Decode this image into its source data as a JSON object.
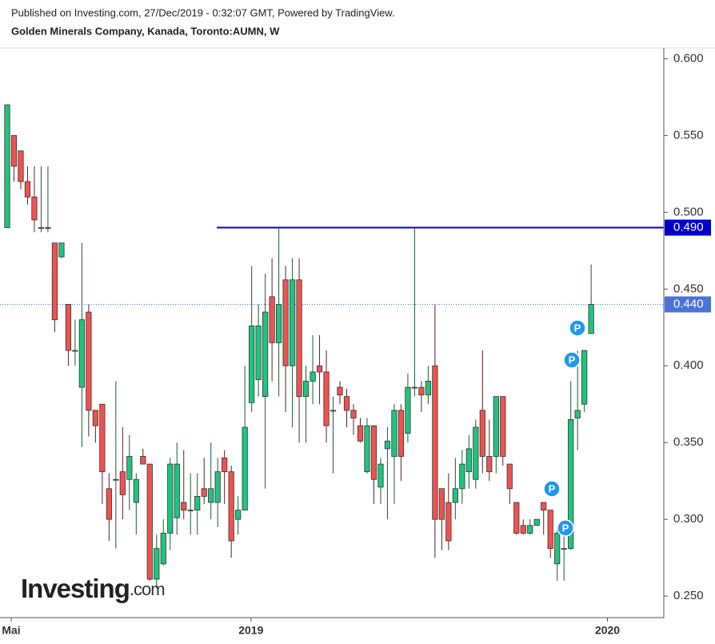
{
  "header": {
    "published": "Published on Investing.com, 27/Dec/2019 - 0:32:07 GMT, Powered by TradingView.",
    "symbol": "Golden Minerals Company, Kanada, Toronto:AUMN, W"
  },
  "logo": {
    "name": "Investing",
    "suffix": ".com"
  },
  "chart_data": {
    "type": "candlestick",
    "categories": [
      null,
      null,
      null,
      null,
      null,
      null,
      null,
      null,
      null,
      null,
      null,
      null,
      null,
      null,
      null,
      null,
      null,
      null,
      null,
      null,
      null,
      null,
      null,
      null,
      null,
      null,
      null,
      null,
      null,
      null,
      null,
      null,
      null,
      null,
      null,
      null,
      null,
      null,
      null,
      null,
      null,
      null,
      null,
      null,
      null,
      null,
      null,
      null,
      null,
      null,
      null,
      null,
      null,
      null,
      null,
      null,
      null,
      null,
      null,
      null,
      null,
      null,
      null,
      null,
      null,
      null,
      null,
      null,
      null,
      null,
      null,
      null,
      null,
      null,
      null,
      null,
      null,
      null,
      null,
      null,
      null,
      null,
      null,
      null,
      null,
      null,
      null
    ],
    "open": [
      0.49,
      0.55,
      0.54,
      0.52,
      0.51,
      0.49,
      0.49,
      0.48,
      0.471,
      0.44,
      0.41,
      0.386,
      0.435,
      0.371,
      0.375,
      0.32,
      0.326,
      0.331,
      0.326,
      0.311,
      0.341,
      0.336,
      0.261,
      0.271,
      0.291,
      0.301,
      0.311,
      0.306,
      0.306,
      0.32,
      0.311,
      0.311,
      0.34,
      0.331,
      0.3,
      0.306,
      0.376,
      0.391,
      0.38,
      0.445,
      0.415,
      0.456,
      0.4,
      0.456,
      0.38,
      0.39,
      0.4,
      0.396,
      0.371,
      0.386,
      0.38,
      0.371,
      0.361,
      0.331,
      0.361,
      0.321,
      0.346,
      0.341,
      0.371,
      0.356,
      0.386,
      0.386,
      0.381,
      0.4,
      0.32,
      0.311,
      0.311,
      0.32,
      0.331,
      0.326,
      0.371,
      0.341,
      0.341,
      0.38,
      0.336,
      0.311,
      0.296,
      0.291,
      0.296,
      0.311,
      0.306,
      0.271,
      0.281,
      0.281,
      0.366,
      0.375,
      0.421
    ],
    "high": [
      0.57,
      0.55,
      0.54,
      0.53,
      0.53,
      0.53,
      0.53,
      0.48,
      0.48,
      0.44,
      0.43,
      0.48,
      0.44,
      0.371,
      0.375,
      0.33,
      0.39,
      0.36,
      0.355,
      0.33,
      0.346,
      0.336,
      0.29,
      0.3,
      0.34,
      0.35,
      0.345,
      0.33,
      0.33,
      0.34,
      0.35,
      0.34,
      0.345,
      0.335,
      0.315,
      0.4,
      0.465,
      0.44,
      0.46,
      0.47,
      0.49,
      0.465,
      0.47,
      0.47,
      0.4,
      0.42,
      0.42,
      0.41,
      0.38,
      0.39,
      0.385,
      0.375,
      0.366,
      0.366,
      0.361,
      0.34,
      0.36,
      0.375,
      0.375,
      0.395,
      0.49,
      0.39,
      0.4,
      0.44,
      0.32,
      0.33,
      0.34,
      0.345,
      0.355,
      0.365,
      0.41,
      0.365,
      0.38,
      0.38,
      0.336,
      0.311,
      0.3,
      0.3,
      0.3,
      0.311,
      0.306,
      0.295,
      0.29,
      0.39,
      0.41,
      0.41,
      0.466
    ],
    "low": [
      0.49,
      0.52,
      0.515,
      0.505,
      0.487,
      0.487,
      0.487,
      0.422,
      0.47,
      0.4,
      0.4,
      0.347,
      0.354,
      0.35,
      0.31,
      0.286,
      0.281,
      0.3,
      0.306,
      0.29,
      0.336,
      0.26,
      0.255,
      0.27,
      0.28,
      0.29,
      0.3,
      0.29,
      0.29,
      0.31,
      0.3,
      0.295,
      0.31,
      0.275,
      0.29,
      0.306,
      0.37,
      0.38,
      0.32,
      0.39,
      0.38,
      0.37,
      0.36,
      0.35,
      0.35,
      0.375,
      0.375,
      0.35,
      0.33,
      0.375,
      0.36,
      0.355,
      0.35,
      0.33,
      0.31,
      0.31,
      0.3,
      0.31,
      0.325,
      0.35,
      0.38,
      0.37,
      0.375,
      0.275,
      0.28,
      0.28,
      0.3,
      0.31,
      0.32,
      0.32,
      0.33,
      0.325,
      0.33,
      0.335,
      0.31,
      0.29,
      0.29,
      0.29,
      0.296,
      0.29,
      0.275,
      0.26,
      0.26,
      0.28,
      0.345,
      0.37,
      0.421
    ],
    "close": [
      0.57,
      0.53,
      0.52,
      0.51,
      0.495,
      0.49,
      0.49,
      0.43,
      0.48,
      0.41,
      0.41,
      0.43,
      0.371,
      0.361,
      0.331,
      0.3,
      0.326,
      0.316,
      0.341,
      0.326,
      0.336,
      0.261,
      0.281,
      0.291,
      0.336,
      0.336,
      0.306,
      0.306,
      0.315,
      0.315,
      0.32,
      0.331,
      0.331,
      0.286,
      0.306,
      0.36,
      0.426,
      0.426,
      0.435,
      0.415,
      0.44,
      0.4,
      0.456,
      0.38,
      0.39,
      0.396,
      0.396,
      0.361,
      0.371,
      0.381,
      0.371,
      0.366,
      0.351,
      0.361,
      0.326,
      0.336,
      0.351,
      0.371,
      0.341,
      0.386,
      0.386,
      0.381,
      0.39,
      0.3,
      0.3,
      0.286,
      0.32,
      0.336,
      0.346,
      0.36,
      0.341,
      0.331,
      0.38,
      0.341,
      0.32,
      0.291,
      0.291,
      0.296,
      0.3,
      0.306,
      0.281,
      0.291,
      0.281,
      0.365,
      0.371,
      0.41,
      0.44
    ],
    "up_color": "#1fc47f",
    "down_color": "#ef5350",
    "xlim": [
      -1.06,
      96.7
    ],
    "xticks": [
      {
        "value": 0.59,
        "label": "Mai"
      },
      {
        "value": 35.9,
        "label": "2019"
      },
      {
        "value": 88.4,
        "label": "2020"
      }
    ],
    "ylim": [
      0.236,
      0.607
    ],
    "yticks": [
      {
        "value": 0.25,
        "label": "0.250"
      },
      {
        "value": 0.3,
        "label": "0.300"
      },
      {
        "value": 0.35,
        "label": "0.350"
      },
      {
        "value": 0.4,
        "label": "0.400"
      },
      {
        "value": 0.45,
        "label": "0.450"
      },
      {
        "value": 0.5,
        "label": "0.500"
      },
      {
        "value": 0.55,
        "label": "0.550"
      },
      {
        "value": 0.6,
        "label": "0.600"
      }
    ],
    "hlines": [
      {
        "value": 0.49,
        "label": "0.490",
        "color": "#0000cc"
      },
      {
        "value": 0.44,
        "label": "0.440",
        "color": "#4a72d9"
      }
    ],
    "annotations": [
      "P",
      "P",
      "P",
      "P"
    ]
  }
}
